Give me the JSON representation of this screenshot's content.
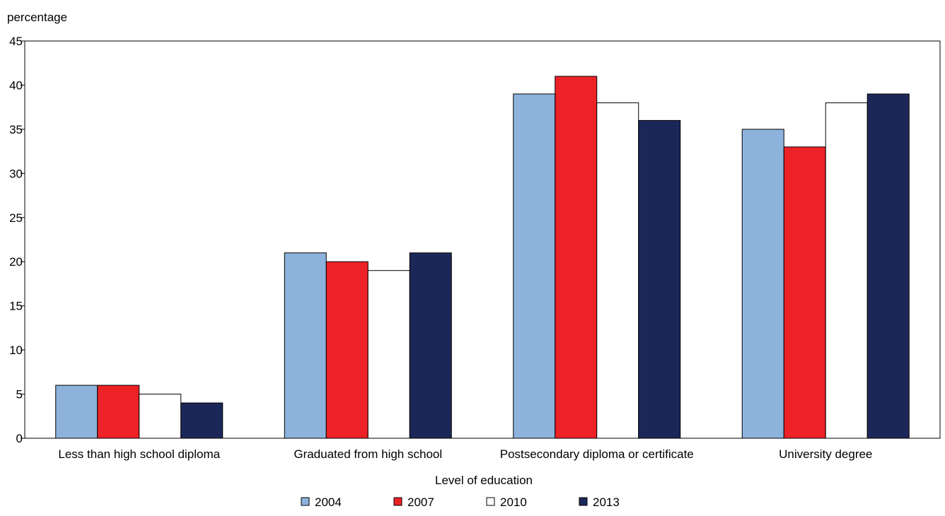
{
  "chart_data": {
    "type": "bar",
    "ylabel": "percentage",
    "xlabel": "Level of education",
    "ylim": [
      0,
      45
    ],
    "yticks": [
      0,
      5,
      10,
      15,
      20,
      25,
      30,
      35,
      40,
      45
    ],
    "grid": false,
    "legend_position": "bottom",
    "categories": [
      "Less than high school diploma",
      "Graduated from high school",
      "Postsecondary diploma or certificate",
      "University degree"
    ],
    "series": [
      {
        "name": "2004",
        "color": "#8db3dc",
        "values": [
          6,
          21,
          39,
          35
        ]
      },
      {
        "name": "2007",
        "color": "#ec2227",
        "values": [
          6,
          20,
          41,
          33
        ]
      },
      {
        "name": "2010",
        "color": "#ffffff",
        "values": [
          5,
          19,
          38,
          38
        ]
      },
      {
        "name": "2013",
        "color": "#1c2759",
        "values": [
          4,
          21,
          36,
          39
        ]
      }
    ]
  }
}
